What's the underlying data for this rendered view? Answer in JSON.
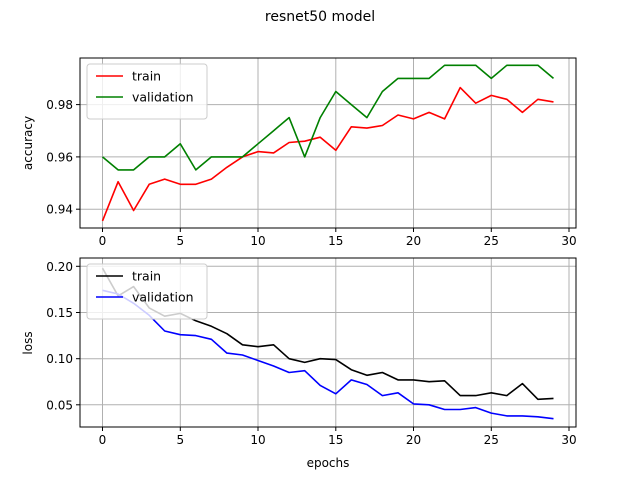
{
  "figure": {
    "title": "resnet50 model"
  },
  "chart_data": [
    {
      "type": "line",
      "xlabel": "",
      "ylabel": "accuracy",
      "xlim": [
        -1.45,
        30.45
      ],
      "ylim": [
        0.9328,
        0.9978
      ],
      "xticks": [
        0,
        5,
        10,
        15,
        20,
        25,
        30
      ],
      "xtick_labels": [
        "0",
        "5",
        "10",
        "15",
        "20",
        "25",
        "30"
      ],
      "yticks": [
        0.94,
        0.96,
        0.98
      ],
      "ytick_labels": [
        "0.94",
        "0.96",
        "0.98"
      ],
      "grid": true,
      "legend": "top-left",
      "x": [
        0,
        1,
        2,
        3,
        4,
        5,
        6,
        7,
        8,
        9,
        10,
        11,
        12,
        13,
        14,
        15,
        16,
        17,
        18,
        19,
        20,
        21,
        22,
        23,
        24,
        25,
        26,
        27,
        28,
        29
      ],
      "series": [
        {
          "name": "train",
          "color": "#ff0000",
          "values": [
            0.9355,
            0.9505,
            0.9395,
            0.9495,
            0.9515,
            0.9495,
            0.9495,
            0.9515,
            0.956,
            0.96,
            0.962,
            0.9615,
            0.9655,
            0.966,
            0.9675,
            0.9625,
            0.9715,
            0.971,
            0.972,
            0.976,
            0.9745,
            0.977,
            0.9745,
            0.9865,
            0.9805,
            0.9835,
            0.982,
            0.977,
            0.982,
            0.981
          ]
        },
        {
          "name": "validation",
          "color": "#008000",
          "values": [
            0.96,
            0.955,
            0.955,
            0.96,
            0.96,
            0.965,
            0.955,
            0.96,
            0.96,
            0.96,
            0.965,
            0.97,
            0.975,
            0.96,
            0.975,
            0.985,
            0.98,
            0.975,
            0.985,
            0.99,
            0.99,
            0.99,
            0.995,
            0.995,
            0.995,
            0.99,
            0.995,
            0.995,
            0.995,
            0.99
          ]
        }
      ]
    },
    {
      "type": "line",
      "xlabel": "epochs",
      "ylabel": "loss",
      "xlim": [
        -1.45,
        30.45
      ],
      "ylim": [
        0.026,
        0.209
      ],
      "xticks": [
        0,
        5,
        10,
        15,
        20,
        25,
        30
      ],
      "xtick_labels": [
        "0",
        "5",
        "10",
        "15",
        "20",
        "25",
        "30"
      ],
      "yticks": [
        0.05,
        0.1,
        0.15,
        0.2
      ],
      "ytick_labels": [
        "0.05",
        "0.10",
        "0.15",
        "0.20"
      ],
      "grid": true,
      "legend": "top-left",
      "x": [
        0,
        1,
        2,
        3,
        4,
        5,
        6,
        7,
        8,
        9,
        10,
        11,
        12,
        13,
        14,
        15,
        16,
        17,
        18,
        19,
        20,
        21,
        22,
        23,
        24,
        25,
        26,
        27,
        28,
        29
      ],
      "series": [
        {
          "name": "train",
          "color": "#000000",
          "values": [
            0.198,
            0.168,
            0.178,
            0.155,
            0.146,
            0.149,
            0.141,
            0.135,
            0.127,
            0.115,
            0.113,
            0.115,
            0.1,
            0.096,
            0.1,
            0.099,
            0.088,
            0.082,
            0.085,
            0.077,
            0.077,
            0.075,
            0.076,
            0.06,
            0.06,
            0.063,
            0.06,
            0.073,
            0.056,
            0.057
          ]
        },
        {
          "name": "validation",
          "color": "#0000ff",
          "values": [
            0.174,
            0.17,
            0.16,
            0.147,
            0.13,
            0.126,
            0.125,
            0.121,
            0.106,
            0.104,
            0.098,
            0.092,
            0.085,
            0.087,
            0.071,
            0.062,
            0.077,
            0.072,
            0.06,
            0.063,
            0.051,
            0.05,
            0.045,
            0.045,
            0.047,
            0.041,
            0.038,
            0.038,
            0.037,
            0.035
          ]
        }
      ]
    }
  ]
}
